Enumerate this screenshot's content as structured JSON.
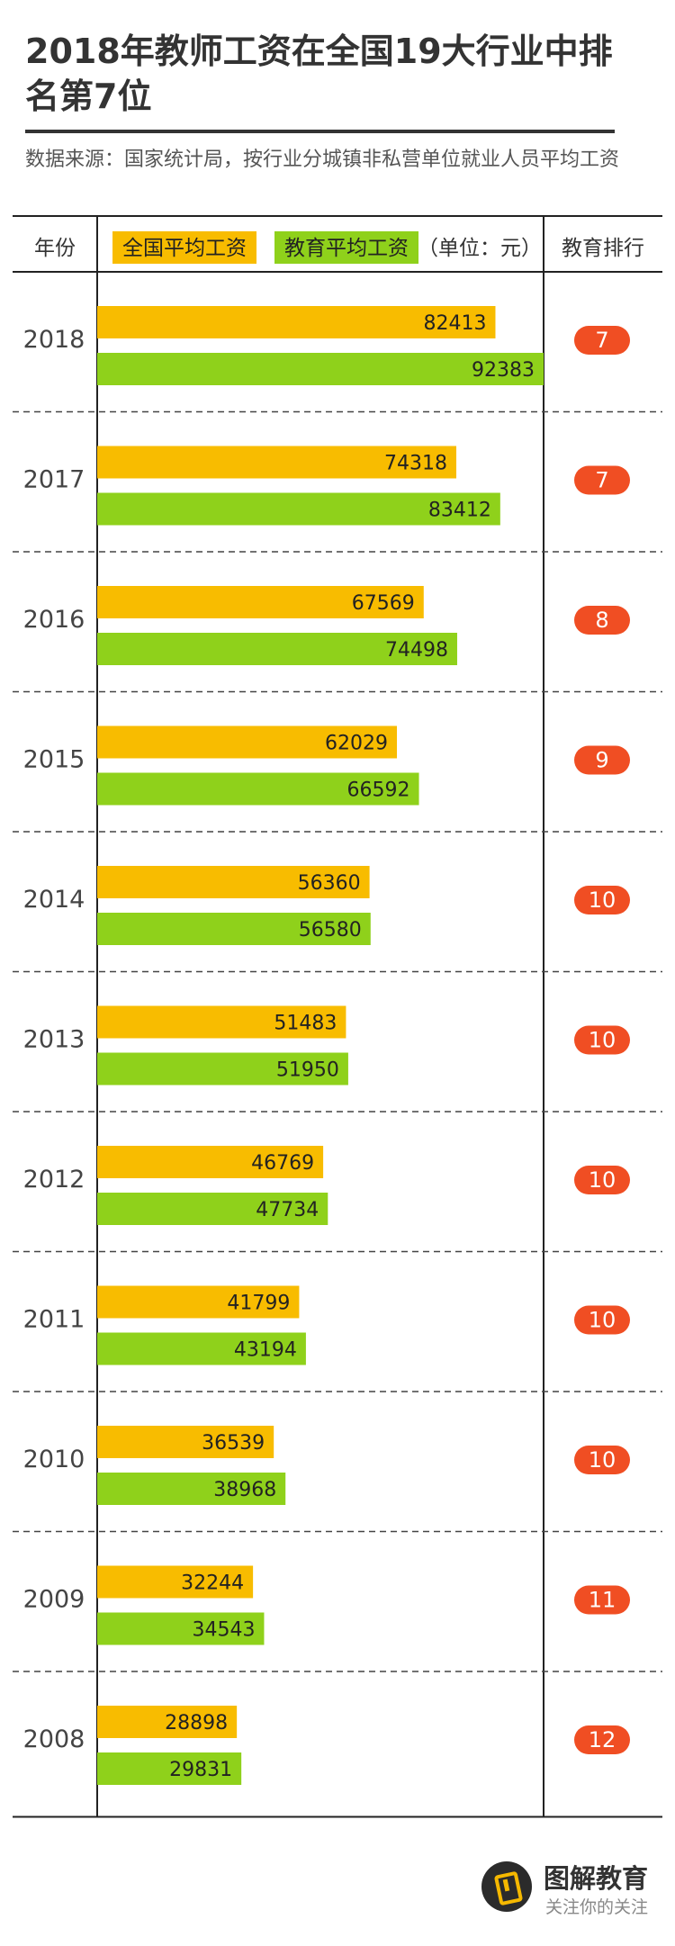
{
  "title": "2018年教师工资在全国19大行业中排名第7位",
  "source": "数据来源：国家统计局，按行业分城镇非私营单位就业人员平均工资",
  "header": {
    "year_label": "年份",
    "legend_national": "全国平均工资",
    "legend_education": "教育平均工资",
    "unit": "（单位：元）",
    "rank_label": "教育排行"
  },
  "colors": {
    "national": "#f8bc00",
    "education": "#8fd11b",
    "rank_badge": "#f04e23",
    "axis": "#222222",
    "divider": "#444444"
  },
  "chart_data": {
    "type": "bar",
    "orientation": "horizontal",
    "categories": [
      "2018",
      "2017",
      "2016",
      "2015",
      "2014",
      "2013",
      "2012",
      "2011",
      "2010",
      "2009",
      "2008"
    ],
    "series": [
      {
        "name": "全国平均工资",
        "values": [
          82413,
          74318,
          67569,
          62029,
          56360,
          51483,
          46769,
          41799,
          36539,
          32244,
          28898
        ]
      },
      {
        "name": "教育平均工资",
        "values": [
          92383,
          83412,
          74498,
          66592,
          56580,
          51950,
          47734,
          43194,
          38968,
          34543,
          29831
        ]
      }
    ],
    "ranks": [
      "7",
      "7",
      "8",
      "9",
      "10",
      "10",
      "10",
      "10",
      "10",
      "11",
      "12"
    ],
    "xlim": [
      0,
      92383
    ]
  },
  "brand": {
    "name": "图解教育",
    "slogan": "关注你的关注"
  }
}
